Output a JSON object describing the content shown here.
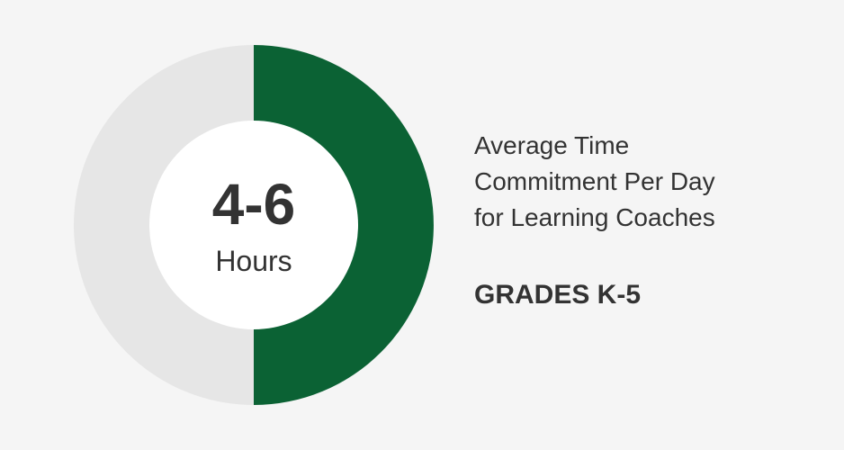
{
  "donut": {
    "value": "4-6",
    "unit": "Hours",
    "fill_fraction": 0.5,
    "fill_color": "#0b6234",
    "track_color": "#e6e6e6",
    "center_color": "#ffffff"
  },
  "description": {
    "line1": "Average Time",
    "line2": "Commitment Per Day",
    "line3": "for Learning Coaches"
  },
  "grade_label": "GRADES K-5"
}
